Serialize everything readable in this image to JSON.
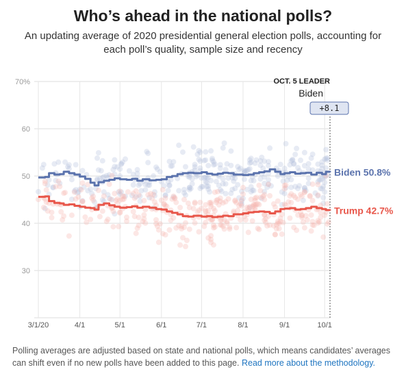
{
  "header": {
    "title": "Who’s ahead in the national polls?",
    "subtitle": "An updating average of 2020 presidential general election polls, accounting for each poll’s quality, sample size and recency"
  },
  "footnote": {
    "text": "Polling averages are adjusted based on state and national polls, which means candidates’ averages can shift even if no new polls have been added to this page. ",
    "link_text": "Read more about the methodology."
  },
  "chart_data": {
    "type": "line",
    "x_range": [
      "2020-03-01",
      "2020-10-05"
    ],
    "ylim": [
      20,
      70
    ],
    "y_ticks": [
      {
        "value": 70,
        "label": "70%"
      },
      {
        "value": 60,
        "label": "60"
      },
      {
        "value": 50,
        "label": "50"
      },
      {
        "value": 40,
        "label": "40"
      },
      {
        "value": 30,
        "label": "30"
      }
    ],
    "x_ticks": [
      {
        "date": "2020-03-01",
        "label": "3/1/20"
      },
      {
        "date": "2020-04-01",
        "label": "4/1"
      },
      {
        "date": "2020-05-01",
        "label": "5/1"
      },
      {
        "date": "2020-06-01",
        "label": "6/1"
      },
      {
        "date": "2020-07-01",
        "label": "7/1"
      },
      {
        "date": "2020-08-01",
        "label": "8/1"
      },
      {
        "date": "2020-09-01",
        "label": "9/1"
      },
      {
        "date": "2020-10-01",
        "label": "10/1"
      }
    ],
    "grid": true,
    "leader": {
      "title": "OCT. 5 LEADER",
      "name": "Biden",
      "margin": "+8.1",
      "date": "2020-10-05"
    },
    "series": [
      {
        "name": "Biden",
        "end_label": "Biden 50.8%",
        "color": "#5b73ad",
        "values": [
          [
            "2020-03-01",
            49.7
          ],
          [
            "2020-03-06",
            49.8
          ],
          [
            "2020-03-09",
            50.6
          ],
          [
            "2020-03-13",
            50.3
          ],
          [
            "2020-03-17",
            50.4
          ],
          [
            "2020-03-20",
            50.9
          ],
          [
            "2020-03-24",
            50.6
          ],
          [
            "2020-03-28",
            50.3
          ],
          [
            "2020-04-01",
            49.9
          ],
          [
            "2020-04-05",
            49.4
          ],
          [
            "2020-04-09",
            48.6
          ],
          [
            "2020-04-12",
            48.0
          ],
          [
            "2020-04-15",
            48.7
          ],
          [
            "2020-04-19",
            49.0
          ],
          [
            "2020-04-23",
            49.2
          ],
          [
            "2020-04-27",
            49.5
          ],
          [
            "2020-05-01",
            49.3
          ],
          [
            "2020-05-06",
            49.2
          ],
          [
            "2020-05-10",
            49.4
          ],
          [
            "2020-05-14",
            49.0
          ],
          [
            "2020-05-18",
            49.3
          ],
          [
            "2020-05-23",
            49.1
          ],
          [
            "2020-05-28",
            49.2
          ],
          [
            "2020-06-01",
            49.3
          ],
          [
            "2020-06-05",
            49.8
          ],
          [
            "2020-06-09",
            50.0
          ],
          [
            "2020-06-13",
            50.4
          ],
          [
            "2020-06-17",
            50.6
          ],
          [
            "2020-06-21",
            50.7
          ],
          [
            "2020-06-25",
            50.6
          ],
          [
            "2020-07-01",
            50.8
          ],
          [
            "2020-07-05",
            50.5
          ],
          [
            "2020-07-09",
            50.3
          ],
          [
            "2020-07-13",
            50.5
          ],
          [
            "2020-07-17",
            50.7
          ],
          [
            "2020-07-21",
            50.6
          ],
          [
            "2020-07-25",
            50.3
          ],
          [
            "2020-08-01",
            50.2
          ],
          [
            "2020-08-05",
            50.3
          ],
          [
            "2020-08-09",
            50.6
          ],
          [
            "2020-08-13",
            50.8
          ],
          [
            "2020-08-17",
            51.0
          ],
          [
            "2020-08-21",
            51.4
          ],
          [
            "2020-08-25",
            50.9
          ],
          [
            "2020-08-29",
            50.4
          ],
          [
            "2020-09-01",
            50.6
          ],
          [
            "2020-09-05",
            50.8
          ],
          [
            "2020-09-09",
            50.5
          ],
          [
            "2020-09-13",
            50.6
          ],
          [
            "2020-09-17",
            50.7
          ],
          [
            "2020-09-21",
            50.3
          ],
          [
            "2020-09-25",
            50.7
          ],
          [
            "2020-09-29",
            50.4
          ],
          [
            "2020-10-02",
            50.9
          ],
          [
            "2020-10-05",
            50.8
          ]
        ]
      },
      {
        "name": "Trump",
        "end_label": "Trump 42.7%",
        "color": "#e8574b",
        "values": [
          [
            "2020-03-01",
            45.6
          ],
          [
            "2020-03-06",
            45.7
          ],
          [
            "2020-03-09",
            44.7
          ],
          [
            "2020-03-13",
            44.3
          ],
          [
            "2020-03-17",
            44.2
          ],
          [
            "2020-03-20",
            43.9
          ],
          [
            "2020-03-24",
            44.0
          ],
          [
            "2020-03-28",
            43.7
          ],
          [
            "2020-04-01",
            43.5
          ],
          [
            "2020-04-05",
            43.3
          ],
          [
            "2020-04-09",
            43.2
          ],
          [
            "2020-04-12",
            42.9
          ],
          [
            "2020-04-15",
            43.9
          ],
          [
            "2020-04-19",
            44.2
          ],
          [
            "2020-04-23",
            43.8
          ],
          [
            "2020-04-27",
            43.5
          ],
          [
            "2020-05-01",
            43.3
          ],
          [
            "2020-05-06",
            43.4
          ],
          [
            "2020-05-10",
            43.6
          ],
          [
            "2020-05-14",
            43.3
          ],
          [
            "2020-05-18",
            43.5
          ],
          [
            "2020-05-23",
            43.3
          ],
          [
            "2020-05-28",
            43.0
          ],
          [
            "2020-06-01",
            42.9
          ],
          [
            "2020-06-05",
            42.5
          ],
          [
            "2020-06-09",
            42.2
          ],
          [
            "2020-06-13",
            41.9
          ],
          [
            "2020-06-17",
            41.5
          ],
          [
            "2020-06-21",
            41.4
          ],
          [
            "2020-06-25",
            41.6
          ],
          [
            "2020-07-01",
            41.4
          ],
          [
            "2020-07-05",
            41.5
          ],
          [
            "2020-07-09",
            41.3
          ],
          [
            "2020-07-13",
            41.4
          ],
          [
            "2020-07-17",
            41.6
          ],
          [
            "2020-07-21",
            41.5
          ],
          [
            "2020-07-25",
            41.9
          ],
          [
            "2020-08-01",
            42.1
          ],
          [
            "2020-08-05",
            42.3
          ],
          [
            "2020-08-09",
            42.4
          ],
          [
            "2020-08-13",
            42.5
          ],
          [
            "2020-08-17",
            42.4
          ],
          [
            "2020-08-21",
            42.1
          ],
          [
            "2020-08-25",
            42.5
          ],
          [
            "2020-08-29",
            43.0
          ],
          [
            "2020-09-01",
            43.1
          ],
          [
            "2020-09-05",
            43.2
          ],
          [
            "2020-09-09",
            42.9
          ],
          [
            "2020-09-13",
            43.0
          ],
          [
            "2020-09-17",
            43.2
          ],
          [
            "2020-09-21",
            43.5
          ],
          [
            "2020-09-25",
            43.2
          ],
          [
            "2020-09-29",
            43.0
          ],
          [
            "2020-10-02",
            42.8
          ],
          [
            "2020-10-05",
            42.7
          ]
        ]
      }
    ]
  }
}
